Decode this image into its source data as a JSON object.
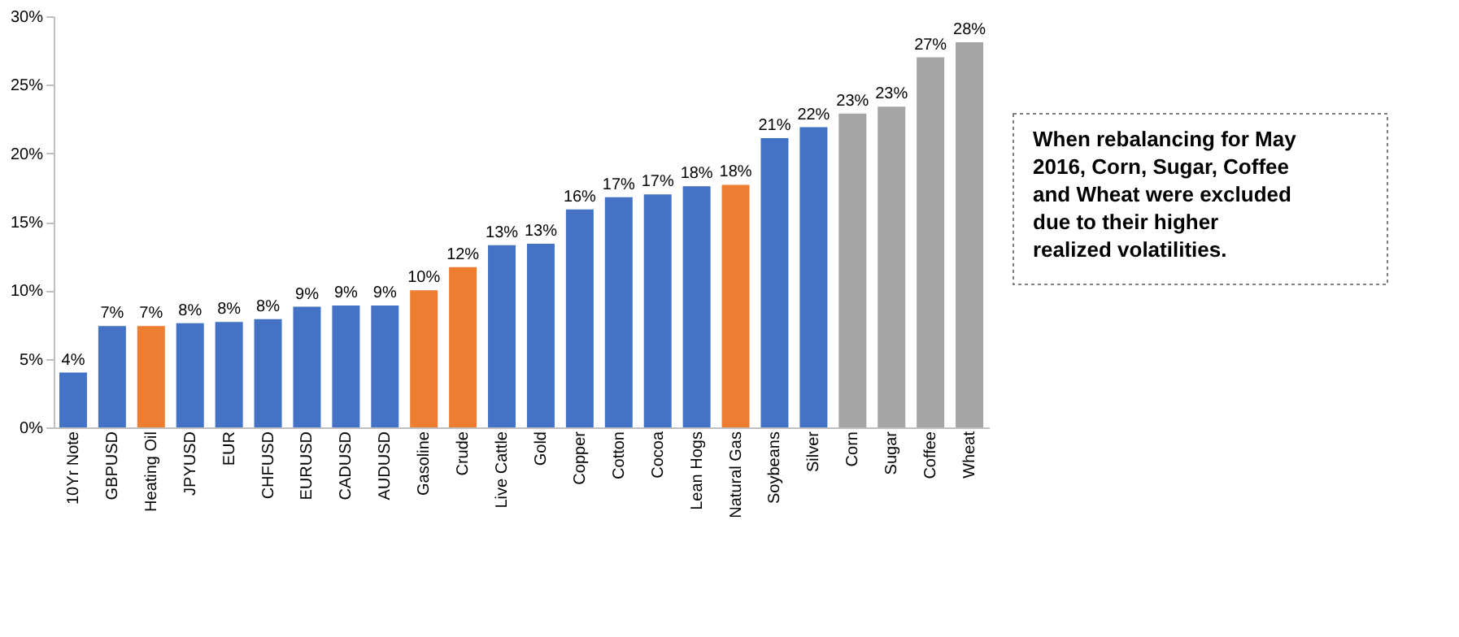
{
  "chart_data": {
    "type": "bar",
    "categories": [
      "10Yr Note",
      "GBPUSD",
      "Heating Oil",
      "JPYUSD",
      "EUR",
      "CHFUSD",
      "EURUSD",
      "CADUSD",
      "AUDUSD",
      "Gasoline",
      "Crude",
      "Live Cattle",
      "Gold",
      "Copper",
      "Cotton",
      "Cocoa",
      "Lean Hogs",
      "Natural Gas",
      "Soybeans",
      "Silver",
      "Corn",
      "Sugar",
      "Coffee",
      "Wheat"
    ],
    "values": [
      4.0,
      7.4,
      7.4,
      7.6,
      7.7,
      7.9,
      8.8,
      8.9,
      8.9,
      10.0,
      11.7,
      13.3,
      13.4,
      15.9,
      16.8,
      17.0,
      17.6,
      17.7,
      21.1,
      21.9,
      22.9,
      23.4,
      27.0,
      28.1
    ],
    "value_labels": [
      "4%",
      "7%",
      "7%",
      "8%",
      "8%",
      "8%",
      "9%",
      "9%",
      "9%",
      "10%",
      "12%",
      "13%",
      "13%",
      "16%",
      "17%",
      "17%",
      "18%",
      "18%",
      "21%",
      "22%",
      "23%",
      "23%",
      "27%",
      "28%"
    ],
    "colors": [
      "#4472c4",
      "#4472c4",
      "#ed7d31",
      "#4472c4",
      "#4472c4",
      "#4472c4",
      "#4472c4",
      "#4472c4",
      "#4472c4",
      "#ed7d31",
      "#ed7d31",
      "#4472c4",
      "#4472c4",
      "#4472c4",
      "#4472c4",
      "#4472c4",
      "#4472c4",
      "#ed7d31",
      "#4472c4",
      "#4472c4",
      "#a5a5a5",
      "#a5a5a5",
      "#a5a5a5",
      "#a5a5a5"
    ],
    "ylim": [
      0,
      30
    ],
    "yticks": [
      {
        "value": 0,
        "label": "0%"
      },
      {
        "value": 5,
        "label": "5%"
      },
      {
        "value": 10,
        "label": "10%"
      },
      {
        "value": 15,
        "label": "15%"
      },
      {
        "value": 20,
        "label": "20%"
      },
      {
        "value": 25,
        "label": "25%"
      },
      {
        "value": 30,
        "label": "30%"
      }
    ],
    "grid": false,
    "annotations": [
      "When rebalancing for May 2016, Corn, Sugar, Coffee and Wheat were excluded due to their higher realized volatilities."
    ]
  }
}
